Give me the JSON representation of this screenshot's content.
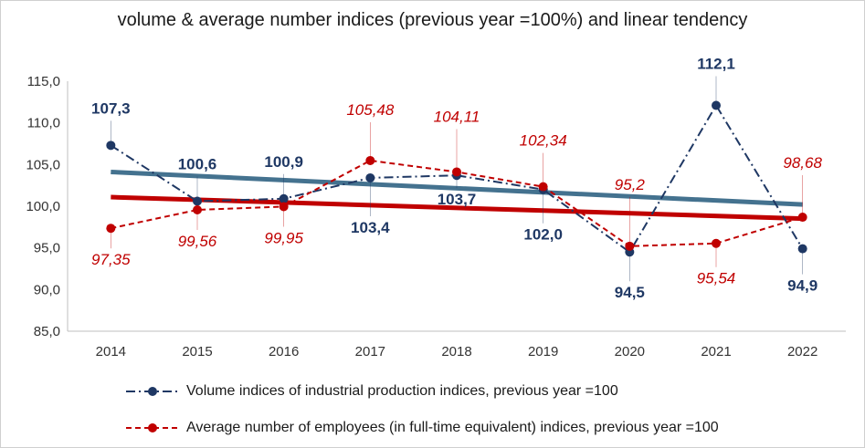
{
  "chart_data": {
    "type": "line",
    "title": "volume & average number indices (previous year =100%) and linear tendency",
    "categories": [
      "2014",
      "2015",
      "2016",
      "2017",
      "2018",
      "2019",
      "2020",
      "2021",
      "2022"
    ],
    "ylim": [
      85,
      115
    ],
    "yticks": [
      "85,0",
      "90,0",
      "95,0",
      "100,0",
      "105,0",
      "110,0",
      "115,0"
    ],
    "series": [
      {
        "name": "Volume indices of industrial production indices, previous year =100",
        "values": [
          107.3,
          100.6,
          100.9,
          103.4,
          103.7,
          102.0,
          94.5,
          112.1,
          94.9
        ],
        "labels": [
          "107,3",
          "100,6",
          "100,9",
          "103,4",
          "103,7",
          "102,0",
          "94,5",
          "112,1",
          "94,9"
        ],
        "color": "#1f3864",
        "style": "dash-dot",
        "trend_color": "#44728f"
      },
      {
        "name": "Average number of employees  (in full-time equivalent) indices, previous year =100",
        "values": [
          97.35,
          99.56,
          99.95,
          105.48,
          104.11,
          102.34,
          95.2,
          95.54,
          98.68
        ],
        "labels": [
          "97,35",
          "99,56",
          "99,95",
          "105,48",
          "104,11",
          "102,34",
          "95,2",
          "95,54",
          "98,68"
        ],
        "color": "#c00000",
        "style": "dashed",
        "trend_color": "#c00000"
      }
    ],
    "grid": false,
    "legend": "bottom"
  }
}
